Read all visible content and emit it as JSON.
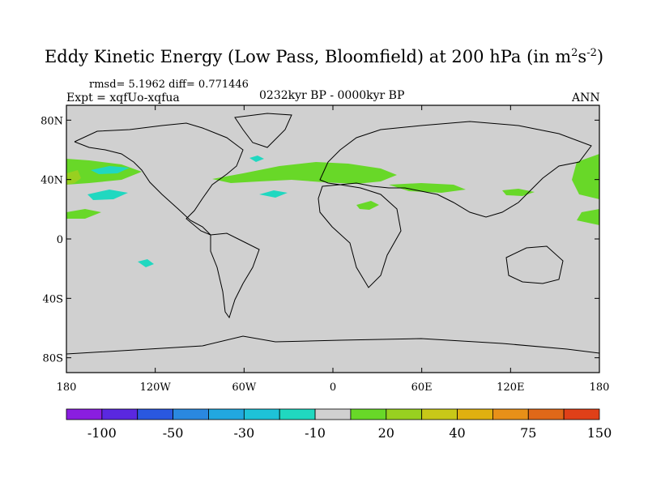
{
  "title": {
    "main": "Eddy Kinetic Energy (Low Pass, Bloomfield) at 200 hPa (in m",
    "sup1": "2",
    "mid": "s",
    "sup2": "-2",
    "end": ")"
  },
  "stats": "rmsd= 5.1962 diff= 0.771446",
  "expt": "Expt = xqfUo-xqfua",
  "period": "0232kyr BP - 0000kyr BP",
  "season": "ANN",
  "map": {
    "land_color": "#d0d0d0",
    "lat_range": [
      -90,
      90
    ],
    "lon_range": [
      -180,
      180
    ],
    "lat_ticks": [
      {
        "value": 80,
        "label": "80N"
      },
      {
        "value": 40,
        "label": "40N"
      },
      {
        "value": 0,
        "label": "0"
      },
      {
        "value": -40,
        "label": "40S"
      },
      {
        "value": -80,
        "label": "80S"
      }
    ],
    "lon_ticks": [
      {
        "value": -180,
        "label": "180"
      },
      {
        "value": -120,
        "label": "120W"
      },
      {
        "value": -60,
        "label": "60W"
      },
      {
        "value": 0,
        "label": "0"
      },
      {
        "value": 60,
        "label": "60E"
      },
      {
        "value": 120,
        "label": "120E"
      },
      {
        "value": 180,
        "label": "180"
      }
    ]
  },
  "colorbar": {
    "colors": [
      "#8a1ee0",
      "#5a28e0",
      "#2a58e0",
      "#2a88e0",
      "#22a8e0",
      "#1ec2d8",
      "#20d8c0",
      "#d0d0d0",
      "#68d828",
      "#98d020",
      "#c8c818",
      "#e0b010",
      "#e89018",
      "#e06818",
      "#e04018"
    ],
    "labels": [
      {
        "after": 1,
        "text": "-100"
      },
      {
        "after": 3,
        "text": "-50"
      },
      {
        "after": 5,
        "text": "-30"
      },
      {
        "after": 7,
        "text": "-10"
      },
      {
        "after": 9,
        "text": "20"
      },
      {
        "after": 11,
        "text": "40"
      },
      {
        "after": 13,
        "text": "75"
      },
      {
        "after": 15,
        "text": "150"
      }
    ]
  }
}
